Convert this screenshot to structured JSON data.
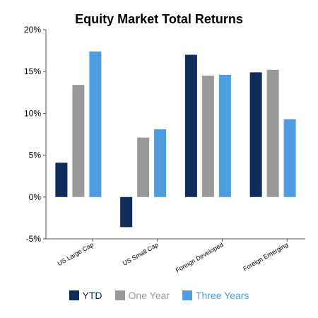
{
  "chart_data": {
    "type": "bar",
    "title": "Equity Market Total Returns",
    "categories": [
      "US Large Cap",
      "US Small Cap",
      "Foreign Developed",
      "Foreign Emerging"
    ],
    "series": [
      {
        "name": "YTD",
        "color": "#0f2b5b",
        "values": [
          4.1,
          -3.6,
          17.0,
          14.9
        ]
      },
      {
        "name": "One Year",
        "color": "#999999",
        "values": [
          13.4,
          7.1,
          14.5,
          15.2
        ]
      },
      {
        "name": "Three Years",
        "color": "#4d9de0",
        "values": [
          17.4,
          8.1,
          14.6,
          9.3
        ]
      }
    ],
    "ylim": [
      -5,
      20
    ],
    "yticks": [
      {
        "value": 20,
        "label": "20%"
      },
      {
        "value": 15,
        "label": "15%"
      },
      {
        "value": 10,
        "label": "10%"
      },
      {
        "value": 5,
        "label": "5%"
      },
      {
        "value": 0,
        "label": "0%"
      },
      {
        "value": -5,
        "label": "-5%"
      }
    ],
    "legend_position": "bottom",
    "grid": false
  }
}
